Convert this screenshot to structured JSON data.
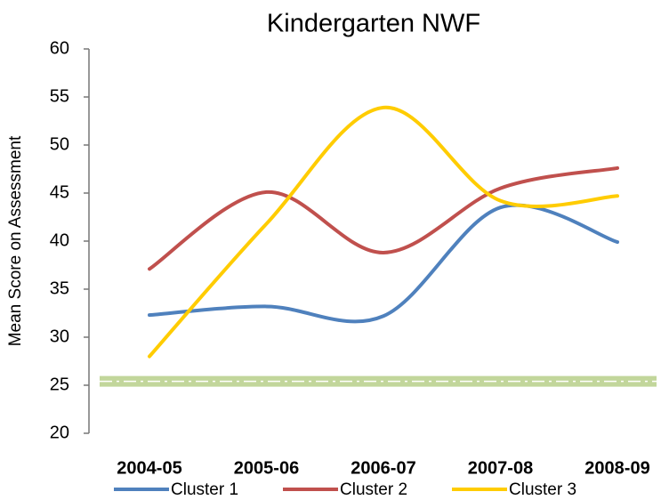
{
  "chart_data": {
    "type": "line",
    "title": "Kindergarten NWF",
    "y_label": "Mean Score on Assessment",
    "categories": [
      "2004-05",
      "2005-06",
      "2006-07",
      "2007-08",
      "2008-09"
    ],
    "series": [
      {
        "name": "Cluster 1",
        "color": "#4f81bd",
        "values": [
          32.3,
          33.2,
          32.2,
          43.5,
          39.9
        ]
      },
      {
        "name": "Cluster 2",
        "color": "#c0504d",
        "values": [
          37.1,
          45.1,
          38.8,
          45.5,
          47.6
        ]
      },
      {
        "name": "Cluster 3",
        "color": "#ffcc00",
        "values": [
          28.0,
          41.8,
          53.9,
          44.2,
          44.7
        ]
      }
    ],
    "reference_line": {
      "value": 25.4,
      "color": "#9bbb59"
    },
    "ylim": [
      20,
      60
    ],
    "yticks": [
      20,
      25,
      30,
      35,
      40,
      45,
      50,
      55,
      60
    ],
    "grid": false,
    "smooth": true
  }
}
